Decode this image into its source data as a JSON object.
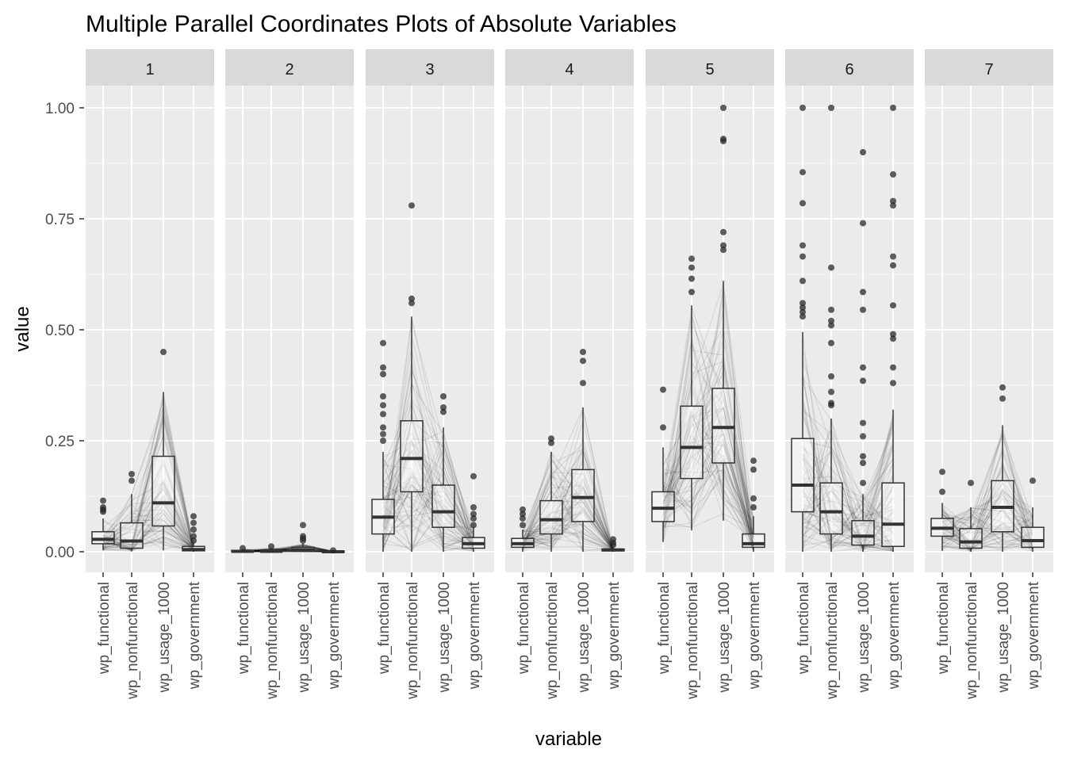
{
  "chart_data": {
    "type": "box",
    "title": "Multiple Parallel Coordinates Plots of Absolute Variables",
    "xlabel": "variable",
    "ylabel": "value",
    "ylim": [
      -0.05,
      1.05
    ],
    "yticks": [
      "0.00",
      "0.25",
      "0.50",
      "0.75",
      "1.00"
    ],
    "ytick_values": [
      0,
      0.25,
      0.5,
      0.75,
      1.0
    ],
    "categories": [
      "wp_functional",
      "wp_nonfunctional",
      "wp_usage_1000",
      "wp_government"
    ],
    "facets": [
      {
        "label": "1",
        "boxes": [
          {
            "q1": 0.018,
            "median": 0.028,
            "q3": 0.045,
            "lower": 0.003,
            "upper": 0.075,
            "outliers": [
              0.09,
              0.095,
              0.1,
              0.115
            ]
          },
          {
            "q1": 0.008,
            "median": 0.024,
            "q3": 0.065,
            "lower": 0.001,
            "upper": 0.13,
            "outliers": [
              0.16,
              0.175
            ]
          },
          {
            "q1": 0.058,
            "median": 0.11,
            "q3": 0.215,
            "lower": 0.003,
            "upper": 0.36,
            "outliers": [
              0.45
            ]
          },
          {
            "q1": 0.002,
            "median": 0.005,
            "q3": 0.012,
            "lower": 0.0,
            "upper": 0.02,
            "outliers": [
              0.025,
              0.035,
              0.05,
              0.065,
              0.08
            ]
          }
        ]
      },
      {
        "label": "2",
        "boxes": [
          {
            "q1": 0.0,
            "median": 0.001,
            "q3": 0.003,
            "lower": 0.0,
            "upper": 0.006,
            "outliers": [
              0.008
            ]
          },
          {
            "q1": 0.0,
            "median": 0.001,
            "q3": 0.004,
            "lower": 0.0,
            "upper": 0.008,
            "outliers": [
              0.012
            ]
          },
          {
            "q1": 0.001,
            "median": 0.004,
            "q3": 0.01,
            "lower": 0.0,
            "upper": 0.018,
            "outliers": [
              0.025,
              0.03,
              0.035,
              0.06
            ]
          },
          {
            "q1": 0.0,
            "median": 0.0,
            "q3": 0.001,
            "lower": 0.0,
            "upper": 0.002,
            "outliers": [
              0.003
            ]
          }
        ]
      },
      {
        "label": "3",
        "boxes": [
          {
            "q1": 0.04,
            "median": 0.078,
            "q3": 0.118,
            "lower": 0.0,
            "upper": 0.225,
            "outliers": [
              0.25,
              0.265,
              0.28,
              0.31,
              0.33,
              0.35,
              0.4,
              0.415,
              0.47
            ]
          },
          {
            "q1": 0.135,
            "median": 0.21,
            "q3": 0.295,
            "lower": 0.0,
            "upper": 0.53,
            "outliers": [
              0.56,
              0.57,
              0.78
            ]
          },
          {
            "q1": 0.055,
            "median": 0.09,
            "q3": 0.15,
            "lower": 0.0,
            "upper": 0.28,
            "outliers": [
              0.315,
              0.325,
              0.35
            ]
          },
          {
            "q1": 0.008,
            "median": 0.018,
            "q3": 0.032,
            "lower": 0.0,
            "upper": 0.055,
            "outliers": [
              0.06,
              0.075,
              0.085,
              0.1,
              0.17
            ]
          }
        ]
      },
      {
        "label": "4",
        "boxes": [
          {
            "q1": 0.01,
            "median": 0.018,
            "q3": 0.03,
            "lower": 0.0,
            "upper": 0.05,
            "outliers": [
              0.06,
              0.075,
              0.085,
              0.095
            ]
          },
          {
            "q1": 0.04,
            "median": 0.072,
            "q3": 0.115,
            "lower": 0.0,
            "upper": 0.225,
            "outliers": [
              0.245,
              0.255
            ]
          },
          {
            "q1": 0.068,
            "median": 0.122,
            "q3": 0.185,
            "lower": 0.0,
            "upper": 0.325,
            "outliers": [
              0.38,
              0.43,
              0.45
            ]
          },
          {
            "q1": 0.002,
            "median": 0.004,
            "q3": 0.006,
            "lower": 0.0,
            "upper": 0.01,
            "outliers": [
              0.015,
              0.02,
              0.028
            ]
          }
        ]
      },
      {
        "label": "5",
        "boxes": [
          {
            "q1": 0.068,
            "median": 0.098,
            "q3": 0.135,
            "lower": 0.022,
            "upper": 0.235,
            "outliers": [
              0.28,
              0.365
            ]
          },
          {
            "q1": 0.165,
            "median": 0.235,
            "q3": 0.328,
            "lower": 0.048,
            "upper": 0.555,
            "outliers": [
              0.585,
              0.615,
              0.64,
              0.66
            ]
          },
          {
            "q1": 0.2,
            "median": 0.28,
            "q3": 0.368,
            "lower": 0.07,
            "upper": 0.61,
            "outliers": [
              0.68,
              0.69,
              0.72,
              0.925,
              0.93,
              1.0
            ]
          },
          {
            "q1": 0.01,
            "median": 0.018,
            "q3": 0.04,
            "lower": 0.0,
            "upper": 0.08,
            "outliers": [
              0.1,
              0.12,
              0.185,
              0.205
            ]
          }
        ]
      },
      {
        "label": "6",
        "boxes": [
          {
            "q1": 0.09,
            "median": 0.15,
            "q3": 0.255,
            "lower": 0.0,
            "upper": 0.495,
            "outliers": [
              0.53,
              0.54,
              0.55,
              0.56,
              0.61,
              0.665,
              0.69,
              0.785,
              0.855,
              1.0
            ]
          },
          {
            "q1": 0.04,
            "median": 0.09,
            "q3": 0.155,
            "lower": 0.0,
            "upper": 0.3,
            "outliers": [
              0.33,
              0.335,
              0.36,
              0.395,
              0.47,
              0.51,
              0.52,
              0.545,
              0.64,
              1.0
            ]
          },
          {
            "q1": 0.015,
            "median": 0.035,
            "q3": 0.07,
            "lower": 0.0,
            "upper": 0.13,
            "outliers": [
              0.155,
              0.2,
              0.215,
              0.26,
              0.29,
              0.385,
              0.415,
              0.545,
              0.585,
              0.74,
              0.9
            ]
          },
          {
            "q1": 0.012,
            "median": 0.062,
            "q3": 0.155,
            "lower": 0.0,
            "upper": 0.32,
            "outliers": [
              0.38,
              0.415,
              0.48,
              0.49,
              0.555,
              0.645,
              0.665,
              0.78,
              0.79,
              0.85,
              1.0
            ]
          }
        ]
      },
      {
        "label": "7",
        "boxes": [
          {
            "q1": 0.035,
            "median": 0.053,
            "q3": 0.075,
            "lower": 0.002,
            "upper": 0.11,
            "outliers": [
              0.135,
              0.18
            ]
          },
          {
            "q1": 0.008,
            "median": 0.022,
            "q3": 0.052,
            "lower": 0.0,
            "upper": 0.1,
            "outliers": [
              0.155
            ]
          },
          {
            "q1": 0.045,
            "median": 0.1,
            "q3": 0.16,
            "lower": 0.0,
            "upper": 0.285,
            "outliers": [
              0.345,
              0.37
            ]
          },
          {
            "q1": 0.01,
            "median": 0.025,
            "q3": 0.055,
            "lower": 0.0,
            "upper": 0.1,
            "outliers": [
              0.16
            ]
          }
        ]
      }
    ]
  }
}
